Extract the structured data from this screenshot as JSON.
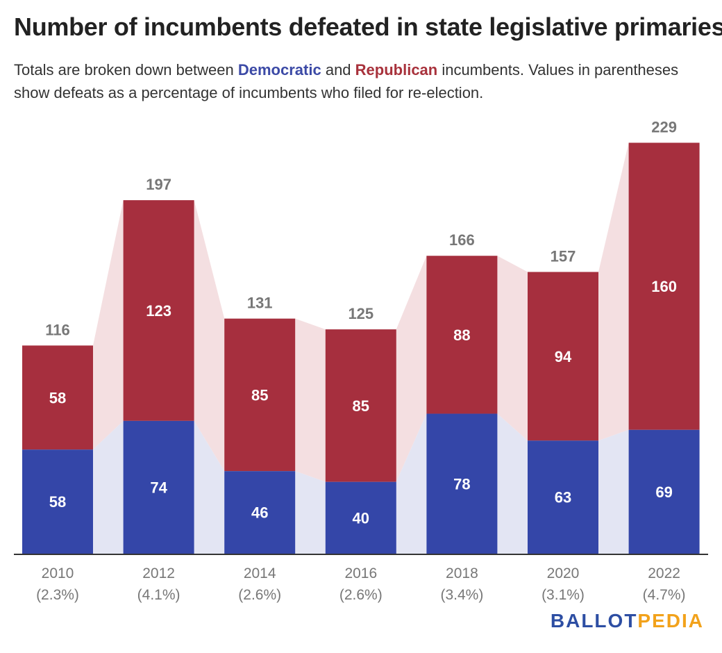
{
  "colors": {
    "democratic": "#3446a8",
    "republican": "#a62f3e",
    "dem_band": "#e3e5f3",
    "rep_band": "#f4dfe1",
    "axis": "#333333"
  },
  "subtitle": {
    "part1": "Totals are broken down between ",
    "dem": "Democratic",
    "part2": " and ",
    "rep": "Republican",
    "part3": " incumbents. Values in parentheses show defeats as a percentage of incumbents who filed for re-election."
  },
  "logo": {
    "part1": "BALLOT",
    "part2": "PEDIA"
  },
  "chart_data": {
    "type": "bar",
    "stacked": true,
    "title": "Number of incumbents defeated in state legislative primaries",
    "categories": [
      "2010",
      "2012",
      "2014",
      "2016",
      "2018",
      "2020",
      "2022"
    ],
    "category_sublabels": [
      "(2.3%)",
      "(4.1%)",
      "(2.6%)",
      "(2.6%)",
      "(3.4%)",
      "(3.1%)",
      "(4.7%)"
    ],
    "series": [
      {
        "name": "Democratic",
        "values": [
          58,
          74,
          46,
          40,
          78,
          63,
          69
        ]
      },
      {
        "name": "Republican",
        "values": [
          58,
          123,
          85,
          85,
          88,
          94,
          160
        ]
      }
    ],
    "totals": [
      116,
      197,
      131,
      125,
      166,
      157,
      229
    ],
    "ylim": [
      0,
      229
    ],
    "grid": false,
    "xlabel": "",
    "ylabel": ""
  }
}
